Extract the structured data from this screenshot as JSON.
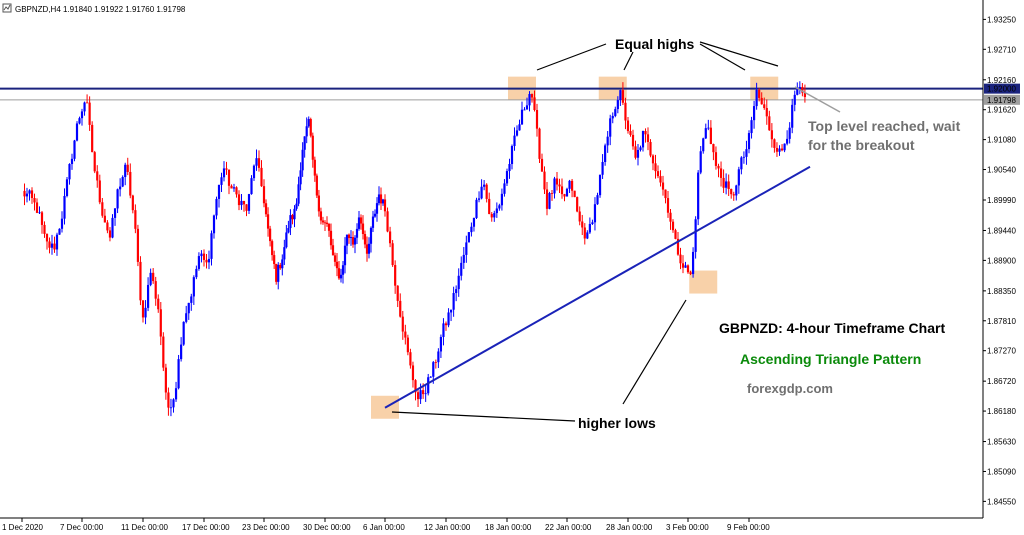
{
  "header": {
    "symbol": "GBPNZD,H4",
    "ohlc": "1.91840 1.91922 1.91760 1.91798"
  },
  "chart_data": {
    "type": "candlestick",
    "symbol": "GBPNZD",
    "timeframe": "H4",
    "ylim": [
      1.8425,
      1.936
    ],
    "y_ticks": [
      "1.93250",
      "1.92710",
      "1.92160",
      "1.91620",
      "1.91080",
      "1.90540",
      "1.89990",
      "1.89440",
      "1.88900",
      "1.88350",
      "1.87810",
      "1.87270",
      "1.86720",
      "1.86180",
      "1.85630",
      "1.85090",
      "1.84550"
    ],
    "x_ticks": [
      "1 Dec 2020",
      "7 Dec 00:00",
      "11 Dec 00:00",
      "17 Dec 00:00",
      "23 Dec 00:00",
      "30 Dec 00:00",
      "6 Jan 00:00",
      "12 Jan 00:00",
      "18 Jan 00:00",
      "22 Jan 00:00",
      "28 Jan 00:00",
      "3 Feb 00:00",
      "9 Feb 00:00"
    ],
    "price_lines": [
      {
        "label": "1.92000",
        "value": 1.92,
        "color": "#1a237e"
      },
      {
        "label": "1.91798",
        "value": 1.91798,
        "color": "#9e9e9e"
      }
    ],
    "trendline": {
      "from": {
        "date": "6 Jan 2021",
        "price": 1.8624
      },
      "to": {
        "date": "15 Feb 2021",
        "price": 1.9059
      }
    },
    "anchor_prices": [
      1.9012,
      1.9005,
      1.898,
      1.892,
      1.8912,
      1.897,
      1.906,
      1.914,
      1.9185,
      1.906,
      1.898,
      1.893,
      1.902,
      1.906,
      1.896,
      1.878,
      1.887,
      1.88,
      1.862,
      1.865,
      1.878,
      1.883,
      1.89,
      1.888,
      1.899,
      1.906,
      1.902,
      1.9,
      1.898,
      1.908,
      1.901,
      1.892,
      1.886,
      1.89,
      1.896,
      1.898,
      1.909,
      1.914,
      1.903,
      1.896,
      1.895,
      1.888,
      1.886,
      1.894,
      1.892,
      1.898,
      1.889,
      1.896,
      1.901,
      1.898,
      1.887,
      1.878,
      1.87,
      1.864,
      1.866,
      1.87,
      1.876,
      1.88,
      1.886,
      1.892,
      1.898,
      1.904,
      1.896,
      1.899,
      1.905,
      1.911,
      1.916,
      1.92,
      1.909,
      1.899,
      1.903,
      1.9,
      1.903,
      1.896,
      1.893,
      1.899,
      1.907,
      1.915,
      1.9195,
      1.913,
      1.907,
      1.912,
      1.908,
      1.904,
      1.899,
      1.892,
      1.888,
      1.886,
      1.908,
      1.914,
      1.906,
      1.903,
      1.9,
      1.906,
      1.91,
      1.9195,
      1.916,
      1.911,
      1.908,
      1.913,
      1.92,
      1.918
    ],
    "highlight_zones": [
      {
        "name": "high-1",
        "date": "19 Jan 2021",
        "price": 1.92
      },
      {
        "name": "high-2",
        "date": "27 Jan 2021",
        "price": 1.92
      },
      {
        "name": "high-3",
        "date": "10 Feb 2021",
        "price": 1.92
      },
      {
        "name": "low-1",
        "date": "6 Jan 2021",
        "price": 1.8624
      },
      {
        "name": "low-2",
        "date": "4 Feb 2021",
        "price": 1.885
      }
    ]
  },
  "annotations": {
    "equal_highs": "Equal highs",
    "top_level_1": "Top level reached, wait",
    "top_level_2": "for the breakout",
    "higher_lows": "higher lows",
    "chart_title": "GBPNZD: 4-hour Timeframe Chart",
    "pattern": "Ascending Triangle Pattern",
    "site": "forexgdp.com"
  },
  "colors": {
    "bull": "#0000ff",
    "bear": "#ff0000",
    "trendline": "#1a23b8",
    "resistance": "#1a237e",
    "current": "#9e9e9e",
    "highlight": "#f7c99a",
    "pattern": "#0a8a0a",
    "site": "#707070",
    "note": "#707070"
  }
}
